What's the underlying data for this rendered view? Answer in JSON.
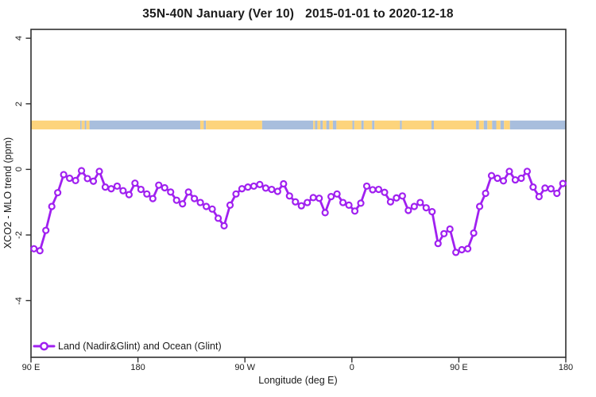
{
  "title": {
    "left": "35N-40N January (Ver 10)",
    "right": "2015-01-01 to 2020-12-18"
  },
  "axes": {
    "x_label": "Longitude (deg E)",
    "y_label": "XCO2 - MLO trend (ppm)",
    "x_ticks": [
      {
        "deg": 90,
        "label": "90 E"
      },
      {
        "deg": 180,
        "label": "180"
      },
      {
        "deg": 270,
        "label": "90 W"
      },
      {
        "deg": 360,
        "label": "0"
      },
      {
        "deg": 450,
        "label": "90 E"
      },
      {
        "deg": 540,
        "label": "180"
      }
    ],
    "y_ticks": [
      {
        "value": 4,
        "label": "4"
      },
      {
        "value": 2,
        "label": "2"
      },
      {
        "value": 0,
        "label": "0"
      },
      {
        "value": -2,
        "label": "-2"
      },
      {
        "value": -4,
        "label": "-4"
      }
    ]
  },
  "legend": {
    "label": "Land (Nadir&Glint) and Ocean (Glint)"
  },
  "colors": {
    "series": "#A020F0",
    "marker_fill": "#ffffff",
    "land": "#FDD47C",
    "ocean": "#A8BEDD",
    "frame": "#303030",
    "text": "#1b1b1b"
  },
  "chart_data": {
    "type": "line",
    "title": "35N-40N January (Ver 10)  2015-01-01 to 2020-12-18",
    "xlabel": "Longitude (deg E)",
    "ylabel": "XCO2 - MLO trend (ppm)",
    "xlim": [
      90,
      540
    ],
    "ylim": [
      -5.73,
      4.27
    ],
    "grid": false,
    "legend_position": "bottom-left-inside",
    "marker": "open-circle",
    "x": [
      92.5,
      97.5,
      102.5,
      107.5,
      112.5,
      117.5,
      122.5,
      127.5,
      132.5,
      137.5,
      142.5,
      147.5,
      152.5,
      157.5,
      162.5,
      167.5,
      172.5,
      177.5,
      182.5,
      187.5,
      192.5,
      197.5,
      202.5,
      207.5,
      212.5,
      217.5,
      222.5,
      227.5,
      232.5,
      237.5,
      242.5,
      247.5,
      252.5,
      257.5,
      262.5,
      267.5,
      272.5,
      277.5,
      282.5,
      287.5,
      292.5,
      297.5,
      302.5,
      307.5,
      312.5,
      317.5,
      322.5,
      327.5,
      332.5,
      337.5,
      342.5,
      347.5,
      352.5,
      357.5,
      362.5,
      367.5,
      372.5,
      377.5,
      382.5,
      387.5,
      392.5,
      397.5,
      402.5,
      407.5,
      412.5,
      417.5,
      422.5,
      427.5,
      432.5,
      437.5,
      442.5,
      447.5,
      452.5,
      457.5,
      462.5,
      467.5,
      472.5,
      477.5,
      482.5,
      487.5,
      492.5,
      497.5,
      502.5,
      507.5,
      512.5,
      517.5,
      522.5,
      527.5,
      532.5,
      537.5
    ],
    "series": [
      {
        "name": "Land (Nadir&Glint) and Ocean (Glint)",
        "values": [
          -2.42,
          -2.48,
          -1.86,
          -1.13,
          -0.71,
          -0.16,
          -0.27,
          -0.34,
          -0.04,
          -0.28,
          -0.36,
          -0.06,
          -0.54,
          -0.59,
          -0.51,
          -0.65,
          -0.77,
          -0.42,
          -0.61,
          -0.75,
          -0.89,
          -0.48,
          -0.56,
          -0.69,
          -0.94,
          -1.05,
          -0.69,
          -0.89,
          -1.01,
          -1.13,
          -1.21,
          -1.49,
          -1.72,
          -1.09,
          -0.75,
          -0.59,
          -0.54,
          -0.51,
          -0.46,
          -0.57,
          -0.61,
          -0.67,
          -0.44,
          -0.81,
          -0.99,
          -1.11,
          -1.01,
          -0.86,
          -0.88,
          -1.32,
          -0.83,
          -0.75,
          -1.01,
          -1.09,
          -1.27,
          -1.03,
          -0.51,
          -0.62,
          -0.61,
          -0.7,
          -0.99,
          -0.87,
          -0.81,
          -1.25,
          -1.13,
          -1.01,
          -1.17,
          -1.29,
          -2.26,
          -1.96,
          -1.82,
          -2.53,
          -2.45,
          -2.42,
          -1.94,
          -1.13,
          -0.73,
          -0.19,
          -0.27,
          -0.35,
          -0.06,
          -0.32,
          -0.27,
          -0.06,
          -0.54,
          -0.83,
          -0.57,
          -0.59,
          -0.73,
          -0.43
        ]
      }
    ],
    "surface_band": {
      "description": "land/ocean strip across longitudes",
      "y_top": 1.49,
      "y_bottom": 1.22,
      "segments": [
        {
          "from": 90,
          "to": 131.5,
          "type": "land"
        },
        {
          "from": 131.5,
          "to": 132.6,
          "type": "sea"
        },
        {
          "from": 132.6,
          "to": 135.2,
          "type": "land"
        },
        {
          "from": 135.2,
          "to": 136.6,
          "type": "sea"
        },
        {
          "from": 136.6,
          "to": 139.2,
          "type": "land"
        },
        {
          "from": 139.2,
          "to": 232.4,
          "type": "sea"
        },
        {
          "from": 232.4,
          "to": 235.4,
          "type": "land"
        },
        {
          "from": 235.4,
          "to": 237.2,
          "type": "sea"
        },
        {
          "from": 237.2,
          "to": 284.5,
          "type": "land"
        },
        {
          "from": 284.5,
          "to": 327.5,
          "type": "sea"
        },
        {
          "from": 327.5,
          "to": 329.0,
          "type": "land"
        },
        {
          "from": 329.0,
          "to": 331.0,
          "type": "sea"
        },
        {
          "from": 331.0,
          "to": 333.5,
          "type": "land"
        },
        {
          "from": 333.5,
          "to": 335.5,
          "type": "sea"
        },
        {
          "from": 335.5,
          "to": 338.5,
          "type": "land"
        },
        {
          "from": 338.5,
          "to": 341.0,
          "type": "sea"
        },
        {
          "from": 341.0,
          "to": 344.0,
          "type": "land"
        },
        {
          "from": 344.0,
          "to": 347.0,
          "type": "sea"
        },
        {
          "from": 347.0,
          "to": 360.5,
          "type": "land"
        },
        {
          "from": 360.5,
          "to": 362.0,
          "type": "sea"
        },
        {
          "from": 362.0,
          "to": 368.0,
          "type": "land"
        },
        {
          "from": 368.0,
          "to": 370.0,
          "type": "sea"
        },
        {
          "from": 370.0,
          "to": 377.0,
          "type": "land"
        },
        {
          "from": 377.0,
          "to": 379.0,
          "type": "sea"
        },
        {
          "from": 379.0,
          "to": 400.5,
          "type": "land"
        },
        {
          "from": 400.5,
          "to": 402.0,
          "type": "sea"
        },
        {
          "from": 402.0,
          "to": 427.0,
          "type": "land"
        },
        {
          "from": 427.0,
          "to": 429.0,
          "type": "sea"
        },
        {
          "from": 429.0,
          "to": 464.5,
          "type": "land"
        },
        {
          "from": 464.5,
          "to": 467.0,
          "type": "sea"
        },
        {
          "from": 467.0,
          "to": 471.0,
          "type": "land"
        },
        {
          "from": 471.0,
          "to": 474.0,
          "type": "sea"
        },
        {
          "from": 474.0,
          "to": 478.0,
          "type": "land"
        },
        {
          "from": 478.0,
          "to": 481.5,
          "type": "sea"
        },
        {
          "from": 481.5,
          "to": 485.0,
          "type": "land"
        },
        {
          "from": 485.0,
          "to": 488.0,
          "type": "sea"
        },
        {
          "from": 488.0,
          "to": 493.0,
          "type": "land"
        },
        {
          "from": 493.0,
          "to": 540.0,
          "type": "sea"
        }
      ]
    }
  }
}
